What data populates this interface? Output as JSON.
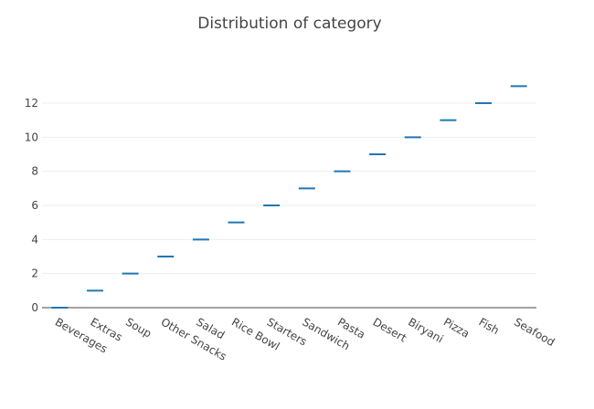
{
  "chart_data": {
    "type": "scatter",
    "title": "Distribution of category",
    "xlabel": "",
    "ylabel": "",
    "categories": [
      "Beverages",
      "Extras",
      "Soup",
      "Other Snacks",
      "Salad",
      "Rice Bowl",
      "Starters",
      "Sandwich",
      "Pasta",
      "Desert",
      "Biryani",
      "Pizza",
      "Fish",
      "Seafood"
    ],
    "series": [
      {
        "values": [
          0,
          1,
          2,
          3,
          4,
          5,
          6,
          7,
          8,
          9,
          10,
          11,
          12,
          13
        ]
      }
    ],
    "ylim": [
      -0.2,
      13.6
    ],
    "yticks": [
      0,
      2,
      4,
      6,
      8,
      10,
      12
    ],
    "grid": true,
    "legend": "none",
    "marker_color": "#1f77b4"
  }
}
